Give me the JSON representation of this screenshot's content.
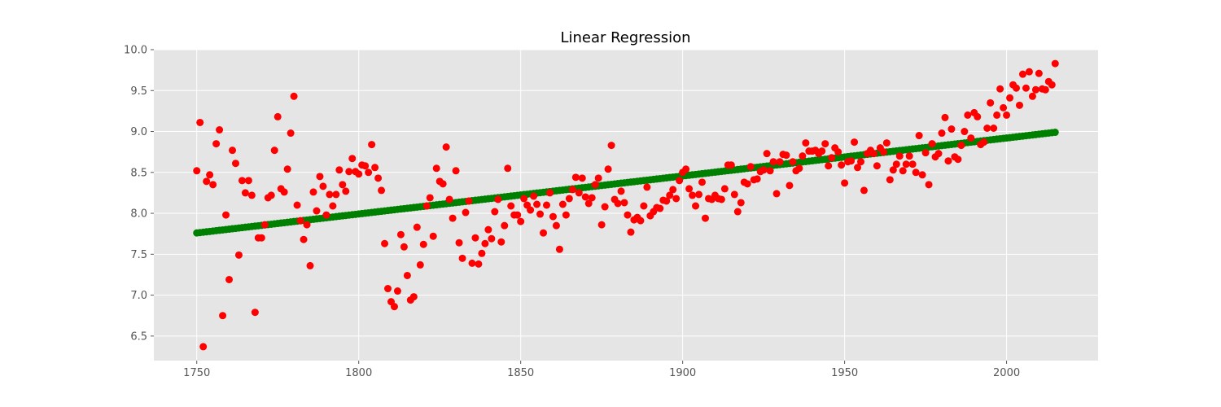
{
  "chart_data": {
    "type": "scatter",
    "title": "Linear Regression",
    "xlabel": "",
    "ylabel": "",
    "xlim": [
      1736.75,
      2028.25
    ],
    "ylim": [
      6.2,
      10.0
    ],
    "x_ticks": [
      1750,
      1800,
      1850,
      1900,
      1950,
      2000
    ],
    "y_ticks": [
      6.5,
      7.0,
      7.5,
      8.0,
      8.5,
      9.0,
      9.5,
      10.0
    ],
    "grid": true,
    "background": "#e5e5e5",
    "series": [
      {
        "kind": "scatter",
        "color": "#ff0000",
        "x": [
          1750,
          1751,
          1752,
          1753,
          1754,
          1755,
          1756,
          1757,
          1758,
          1759,
          1760,
          1761,
          1762,
          1763,
          1764,
          1765,
          1766,
          1767,
          1768,
          1769,
          1770,
          1771,
          1772,
          1773,
          1774,
          1775,
          1776,
          1777,
          1778,
          1779,
          1780,
          1781,
          1782,
          1783,
          1784,
          1785,
          1786,
          1787,
          1788,
          1789,
          1790,
          1791,
          1792,
          1793,
          1794,
          1795,
          1796,
          1797,
          1798,
          1799,
          1800,
          1801,
          1802,
          1803,
          1804,
          1805,
          1806,
          1807,
          1808,
          1809,
          1810,
          1811,
          1812,
          1813,
          1814,
          1815,
          1816,
          1817,
          1818,
          1819,
          1820,
          1821,
          1822,
          1823,
          1824,
          1825,
          1826,
          1827,
          1828,
          1829,
          1830,
          1831,
          1832,
          1833,
          1834,
          1835,
          1836,
          1837,
          1838,
          1839,
          1840,
          1841,
          1842,
          1843,
          1844,
          1845,
          1846,
          1847,
          1848,
          1849,
          1850,
          1851,
          1852,
          1853,
          1854,
          1855,
          1856,
          1857,
          1858,
          1859,
          1860,
          1861,
          1862,
          1863,
          1864,
          1865,
          1866,
          1867,
          1868,
          1869,
          1870,
          1871,
          1872,
          1873,
          1874,
          1875,
          1876,
          1877,
          1878,
          1879,
          1880,
          1881,
          1882,
          1883,
          1884,
          1885,
          1886,
          1887,
          1888,
          1889,
          1890,
          1891,
          1892,
          1893,
          1894,
          1895,
          1896,
          1897,
          1898,
          1899,
          1900,
          1901,
          1902,
          1903,
          1904,
          1905,
          1906,
          1907,
          1908,
          1909,
          1910,
          1911,
          1912,
          1913,
          1914,
          1915,
          1916,
          1917,
          1918,
          1919,
          1920,
          1921,
          1922,
          1923,
          1924,
          1925,
          1926,
          1927,
          1928,
          1929,
          1930,
          1931,
          1932,
          1933,
          1934,
          1935,
          1936,
          1937,
          1938,
          1939,
          1940,
          1941,
          1942,
          1943,
          1944,
          1945,
          1946,
          1947,
          1948,
          1949,
          1950,
          1951,
          1952,
          1953,
          1954,
          1955,
          1956,
          1957,
          1958,
          1959,
          1960,
          1961,
          1962,
          1963,
          1964,
          1965,
          1966,
          1967,
          1968,
          1969,
          1970,
          1971,
          1972,
          1973,
          1974,
          1975,
          1976,
          1977,
          1978,
          1979,
          1980,
          1981,
          1982,
          1983,
          1984,
          1985,
          1986,
          1987,
          1988,
          1989,
          1990,
          1991,
          1992,
          1993,
          1994,
          1995,
          1996,
          1997,
          1998,
          1999,
          2000,
          2001,
          2002,
          2003,
          2004,
          2005,
          2006,
          2007,
          2008,
          2009,
          2010,
          2011,
          2012,
          2013,
          2014,
          2015
        ],
        "y": [
          8.52,
          9.11,
          6.37,
          8.39,
          8.47,
          8.35,
          8.85,
          9.02,
          6.75,
          7.98,
          7.19,
          8.77,
          8.61,
          7.49,
          8.4,
          8.25,
          8.4,
          8.22,
          6.79,
          7.7,
          7.7,
          7.86,
          8.19,
          8.22,
          8.77,
          9.18,
          8.3,
          8.26,
          8.54,
          8.98,
          9.43,
          8.1,
          7.91,
          7.68,
          7.86,
          7.36,
          8.26,
          8.03,
          8.45,
          8.33,
          7.98,
          8.23,
          8.09,
          8.23,
          8.53,
          8.35,
          8.27,
          8.51,
          8.67,
          8.51,
          8.48,
          8.59,
          8.58,
          8.5,
          8.84,
          8.56,
          8.43,
          8.28,
          7.63,
          7.08,
          6.92,
          6.86,
          7.05,
          7.74,
          7.59,
          7.24,
          6.94,
          6.98,
          7.83,
          7.37,
          7.62,
          8.09,
          8.19,
          7.72,
          8.55,
          8.39,
          8.36,
          8.81,
          8.17,
          7.94,
          8.52,
          7.64,
          7.45,
          8.01,
          8.15,
          7.39,
          7.7,
          7.38,
          7.51,
          7.63,
          7.8,
          7.69,
          8.02,
          8.17,
          7.65,
          7.85,
          8.55,
          8.09,
          7.98,
          7.98,
          7.9,
          8.18,
          8.1,
          8.04,
          8.21,
          8.11,
          7.99,
          7.76,
          8.1,
          8.25,
          7.96,
          7.85,
          7.56,
          8.11,
          7.98,
          8.18,
          8.29,
          8.44,
          8.25,
          8.43,
          8.2,
          8.12,
          8.19,
          8.35,
          8.43,
          7.86,
          8.08,
          8.54,
          8.83,
          8.17,
          8.12,
          8.27,
          8.13,
          7.98,
          7.77,
          7.92,
          7.95,
          7.91,
          8.09,
          8.32,
          7.97,
          8.02,
          8.07,
          8.06,
          8.16,
          8.15,
          8.22,
          8.29,
          8.18,
          8.4,
          8.5,
          8.54,
          8.3,
          8.22,
          8.09,
          8.23,
          8.38,
          7.94,
          8.18,
          8.17,
          8.22,
          8.18,
          8.17,
          8.3,
          8.59,
          8.59,
          8.23,
          8.02,
          8.13,
          8.38,
          8.36,
          8.57,
          8.41,
          8.42,
          8.51,
          8.53,
          8.73,
          8.52,
          8.63,
          8.24,
          8.63,
          8.72,
          8.71,
          8.34,
          8.63,
          8.52,
          8.55,
          8.7,
          8.86,
          8.76,
          8.76,
          8.77,
          8.73,
          8.76,
          8.85,
          8.58,
          8.68,
          8.8,
          8.75,
          8.59,
          8.37,
          8.63,
          8.64,
          8.87,
          8.56,
          8.63,
          8.28,
          8.73,
          8.77,
          8.73,
          8.58,
          8.8,
          8.75,
          8.86,
          8.41,
          8.53,
          8.6,
          8.7,
          8.52,
          8.6,
          8.7,
          8.6,
          8.5,
          8.95,
          8.47,
          8.74,
          8.35,
          8.85,
          8.69,
          8.73,
          8.98,
          9.17,
          8.64,
          9.03,
          8.69,
          8.66,
          8.83,
          9.0,
          9.2,
          8.92,
          9.23,
          9.18,
          8.84,
          8.87,
          9.04,
          9.35,
          9.04,
          9.2,
          9.52,
          9.29,
          9.2,
          9.41,
          9.57,
          9.53,
          9.32,
          9.7,
          9.53,
          9.73,
          9.43,
          9.51,
          9.71,
          9.52,
          9.51,
          9.61,
          9.57,
          9.83
        ]
      },
      {
        "kind": "line-points",
        "color": "#008000",
        "x_start": 1750,
        "x_end": 2015,
        "y_start": 7.76,
        "y_end": 8.99
      }
    ]
  }
}
